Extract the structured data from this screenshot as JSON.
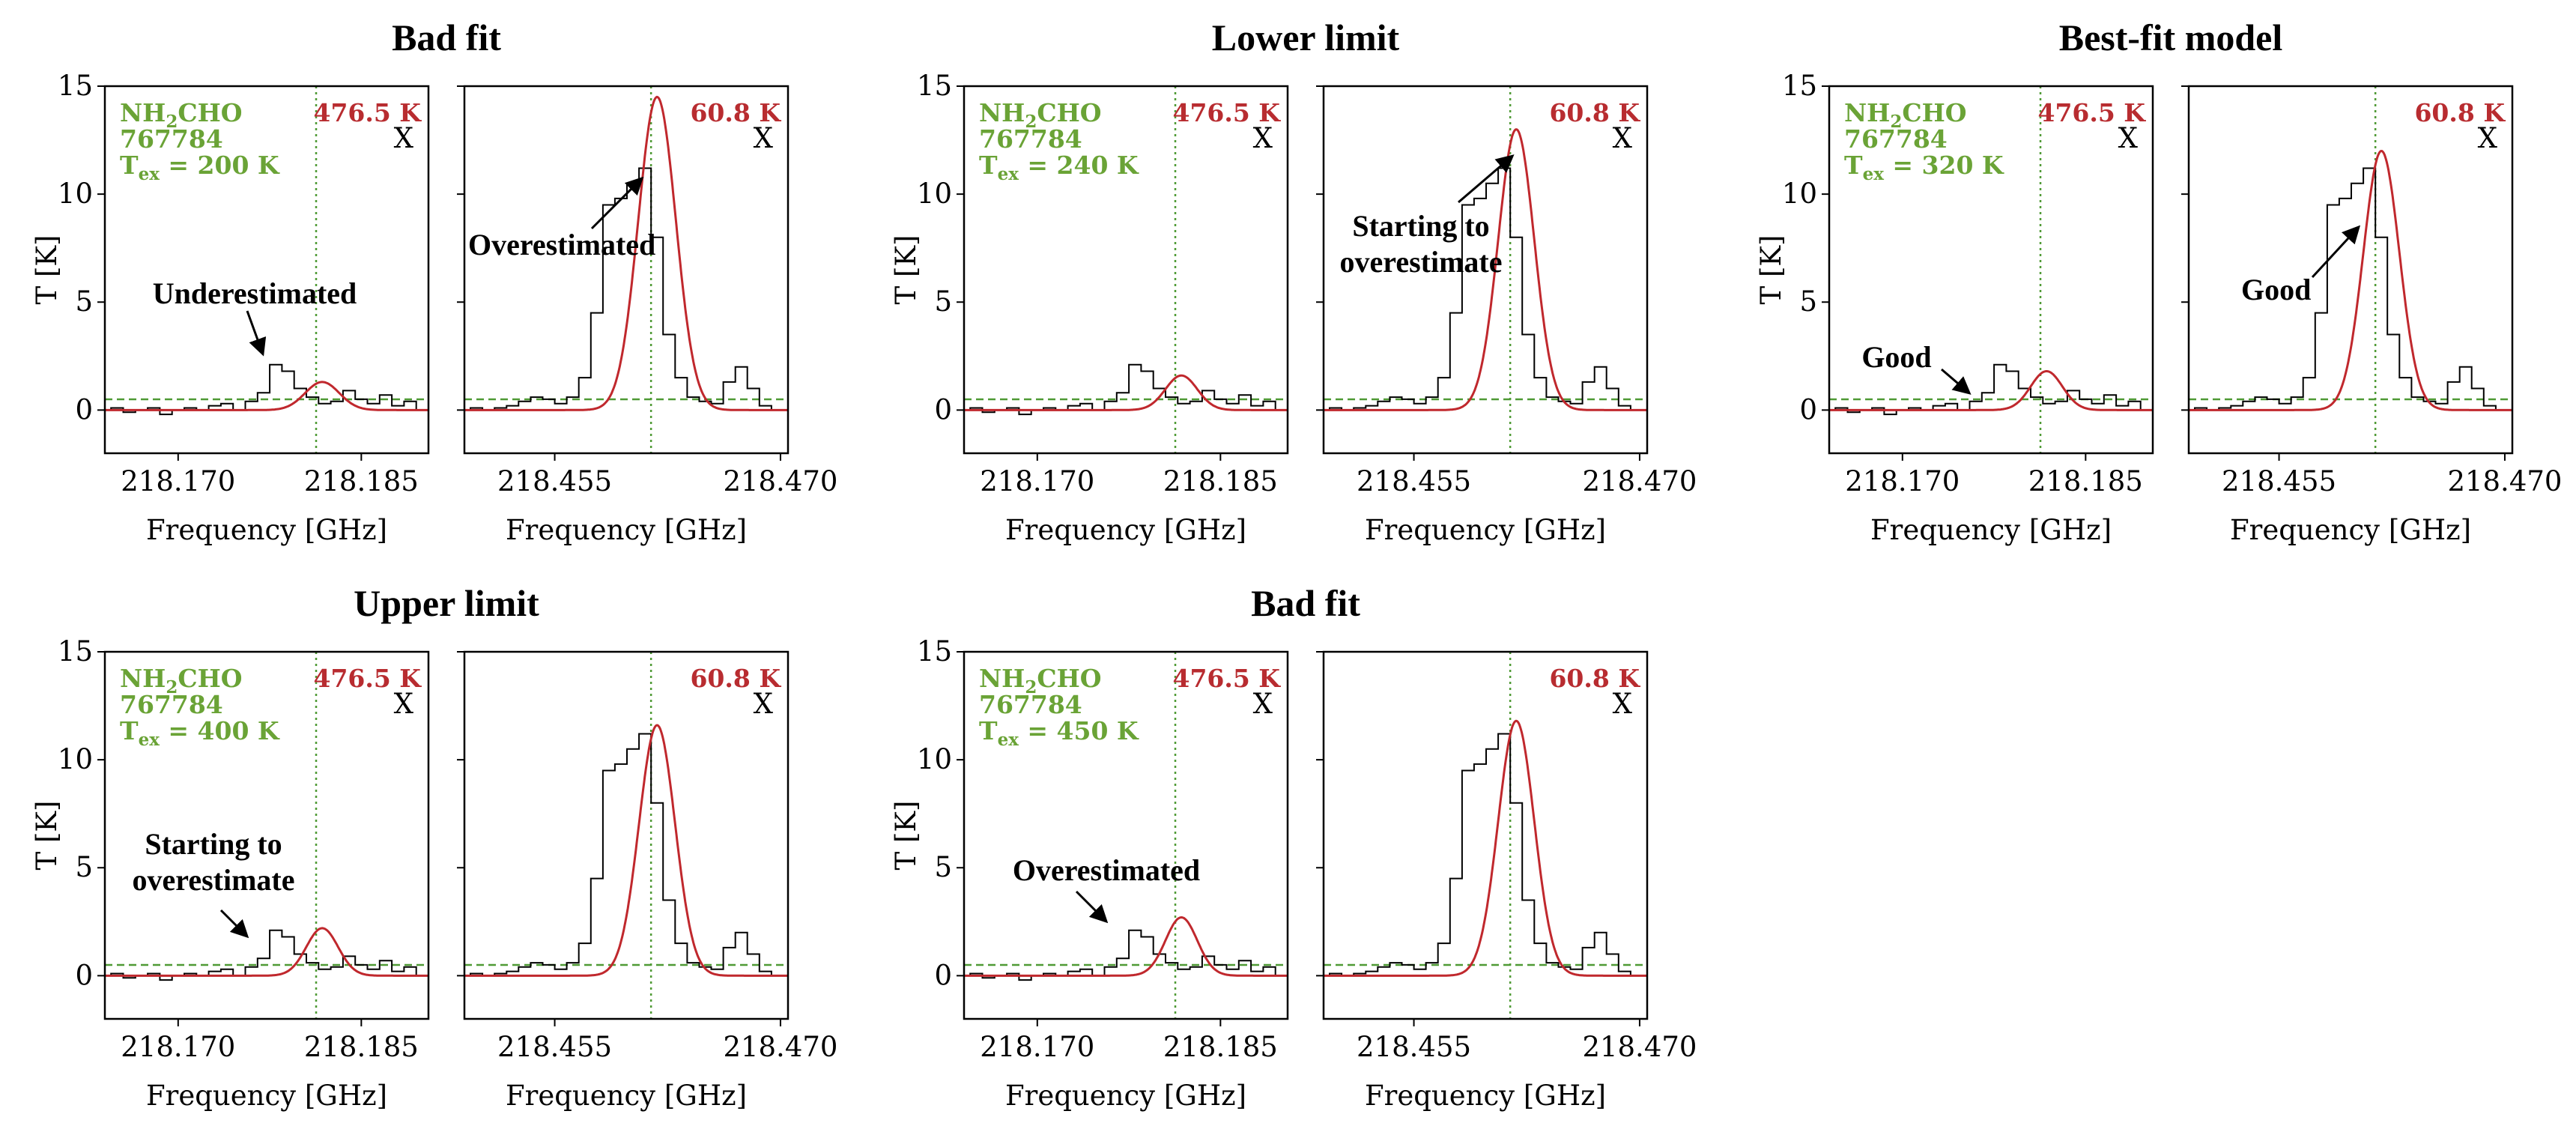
{
  "colors": {
    "model": "#c0282d",
    "molecule_text": "#6aa336",
    "guide": "#4f9a35",
    "energy_text": "#b82c30",
    "data": "#000000"
  },
  "chart_data": {
    "type": "line",
    "shared": {
      "ylabel": "T [K]",
      "xlabel": "Frequency [GHz]",
      "ylim": [
        -2,
        15
      ],
      "yticks": [
        "0",
        "5",
        "10",
        "15"
      ],
      "molecule": "NH",
      "molecule_sub": "2",
      "molecule_rest": "CHO",
      "tag": "767784",
      "tex_prefix": "T",
      "tex_sub": "ex",
      "noise_level": 0.5,
      "mark": "X",
      "left_panel": {
        "xlim": [
          218.164,
          218.1905
        ],
        "xticks": [
          "218.170",
          "218.185"
        ],
        "xtick_values": [
          218.17,
          218.185
        ],
        "line_center": 218.1813,
        "upper_energy": "476.5 K",
        "observed_x": [
          218.164,
          218.165,
          218.166,
          218.167,
          218.168,
          218.169,
          218.17,
          218.171,
          218.172,
          218.173,
          218.174,
          218.175,
          218.176,
          218.177,
          218.178,
          218.179,
          218.18,
          218.181,
          218.182,
          218.183,
          218.184,
          218.185,
          218.186,
          218.187,
          218.188,
          218.189,
          218.19
        ],
        "observed_y": [
          0.0,
          0.1,
          -0.1,
          0.0,
          0.1,
          -0.2,
          0.0,
          0.1,
          0.0,
          0.2,
          0.3,
          0.0,
          0.4,
          0.8,
          2.1,
          1.8,
          1.0,
          0.6,
          0.3,
          0.4,
          0.9,
          0.5,
          0.3,
          0.7,
          0.2,
          0.4,
          0.0
        ]
      },
      "right_panel": {
        "xlim": [
          218.449,
          218.4705
        ],
        "xticks": [
          "218.455",
          "218.470"
        ],
        "xtick_values": [
          218.455,
          218.47
        ],
        "line_center": 218.4614,
        "upper_energy": "60.8 K",
        "observed_x": [
          218.449,
          218.4498,
          218.4506,
          218.4514,
          218.4522,
          218.453,
          218.4538,
          218.4546,
          218.4554,
          218.4562,
          218.457,
          218.4578,
          218.4586,
          218.4594,
          218.4602,
          218.461,
          218.4618,
          218.4626,
          218.4634,
          218.4642,
          218.465,
          218.4658,
          218.4666,
          218.4674,
          218.4682,
          218.469,
          218.4698
        ],
        "observed_y": [
          0.0,
          0.1,
          0.0,
          0.1,
          0.2,
          0.4,
          0.6,
          0.5,
          0.3,
          0.6,
          1.5,
          4.5,
          9.5,
          9.8,
          10.5,
          11.2,
          8.0,
          3.5,
          1.5,
          0.6,
          0.4,
          0.3,
          1.3,
          2.0,
          1.0,
          0.2,
          0.0
        ]
      }
    },
    "panels": [
      {
        "title": "Bad fit",
        "tex_value": " = 200 K",
        "left": {
          "model_center": 218.1818,
          "model_amp": 1.3,
          "model_sigma": 0.0014,
          "annotation": [
            "Underestimated"
          ]
        },
        "right": {
          "model_center": 218.4618,
          "model_amp": 14.5,
          "model_sigma": 0.00125,
          "annotation": [
            "Overestimated"
          ]
        }
      },
      {
        "title": "Lower limit",
        "tex_value": " = 240 K",
        "left": {
          "model_center": 218.1818,
          "model_amp": 1.6,
          "model_sigma": 0.0013,
          "annotation": []
        },
        "right": {
          "model_center": 218.4618,
          "model_amp": 13.0,
          "model_sigma": 0.0012,
          "annotation": [
            "Starting to",
            "overestimate"
          ]
        }
      },
      {
        "title": "Best-fit model",
        "tex_value": " = 320 K",
        "left": {
          "model_center": 218.1818,
          "model_amp": 1.8,
          "model_sigma": 0.0013,
          "annotation": [
            "Good"
          ]
        },
        "right": {
          "model_center": 218.4618,
          "model_amp": 12.0,
          "model_sigma": 0.0012,
          "annotation": [
            "Good"
          ]
        }
      },
      {
        "title": "Upper limit",
        "tex_value": " = 400 K",
        "left": {
          "model_center": 218.1818,
          "model_amp": 2.2,
          "model_sigma": 0.0013,
          "annotation": [
            "Starting to",
            "overestimate"
          ]
        },
        "right": {
          "model_center": 218.4618,
          "model_amp": 11.6,
          "model_sigma": 0.0012,
          "annotation": []
        }
      },
      {
        "title": "Bad fit",
        "tex_value": " = 450 K",
        "left": {
          "model_center": 218.1818,
          "model_amp": 2.7,
          "model_sigma": 0.0013,
          "annotation": [
            "Overestimated"
          ]
        },
        "right": {
          "model_center": 218.4618,
          "model_amp": 11.8,
          "model_sigma": 0.0012,
          "annotation": []
        }
      }
    ]
  }
}
